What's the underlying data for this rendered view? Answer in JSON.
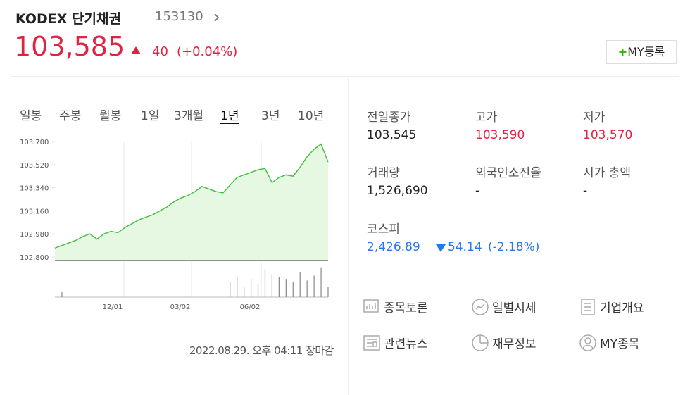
{
  "header": {
    "name": "KODEX 단기채권",
    "code": "153130",
    "price": "103,585",
    "change": "40",
    "change_pct": "(+0.04%)",
    "my_button": "MY등록"
  },
  "tabs": [
    "일봉",
    "주봉",
    "월봉",
    "1일",
    "3개월",
    "1년",
    "3년",
    "10년"
  ],
  "active_tab": 5,
  "chart_data": {
    "type": "line",
    "color": "#3cbf3c",
    "fill": "#e6f8e2",
    "values": [
      102870,
      102890,
      102910,
      102930,
      102960,
      102980,
      102940,
      102980,
      103000,
      102990,
      103030,
      103060,
      103090,
      103110,
      103130,
      103160,
      103190,
      103230,
      103260,
      103280,
      103310,
      103350,
      103330,
      103310,
      103300,
      103360,
      103420,
      103440,
      103460,
      103480,
      103490,
      103380,
      103420,
      103440,
      103430,
      103500,
      103580,
      103640,
      103680,
      103540
    ],
    "ylim": [
      102800,
      103700
    ],
    "yticks": [
      {
        "value": 102800,
        "label": "102,800"
      },
      {
        "value": 102980,
        "label": "102,980"
      },
      {
        "value": 103160,
        "label": "103,160"
      },
      {
        "value": 103340,
        "label": "103,340"
      },
      {
        "value": 103520,
        "label": "103,520"
      },
      {
        "value": 103700,
        "label": "103,700"
      }
    ],
    "xticks": [
      {
        "value": 9.85,
        "label": "12/01"
      },
      {
        "value": 19.5,
        "label": "03/02"
      },
      {
        "value": 29.45,
        "label": "06/02"
      }
    ],
    "volume": [
      0,
      15,
      0,
      0,
      0,
      0,
      0,
      0,
      0,
      0,
      0,
      0,
      0,
      0,
      0,
      0,
      0,
      0,
      0,
      0,
      0,
      0,
      0,
      0,
      0,
      45,
      60,
      30,
      55,
      40,
      85,
      70,
      60,
      55,
      45,
      75,
      50,
      65,
      90,
      30
    ],
    "volume_lim": [
      0,
      100
    ]
  },
  "timestamp": "2022.08.29. 오후 04:11 장마감",
  "stats": [
    {
      "label": "전일종가",
      "value": "103,545"
    },
    {
      "label": "고가",
      "value": "103,590"
    },
    {
      "label": "저가",
      "value": "103,570"
    },
    {
      "label": "거래량",
      "value": "1,526,690"
    },
    {
      "label": "외국인소진율",
      "value": "-"
    },
    {
      "label": "시가 총액",
      "value": "-"
    }
  ],
  "index": {
    "label": "코스피",
    "value": "2,426.89",
    "change": "54.14",
    "change_pct": "(-2.18%)"
  },
  "links": [
    "종목토론",
    "일별시세",
    "기업개요",
    "관련뉴스",
    "재무정보",
    "MY종목"
  ]
}
